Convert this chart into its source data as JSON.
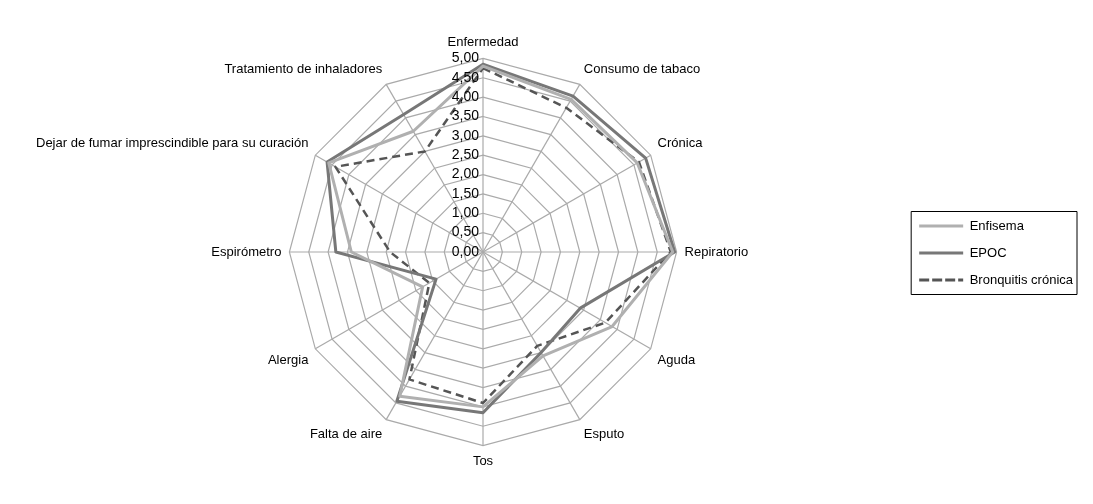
{
  "chart_data": {
    "type": "radar",
    "categories": [
      "Enfermedad",
      "Consumo de tabaco",
      "Crónica",
      "Repiratorio",
      "Aguda",
      "Esputo",
      "Tos",
      "Falta de aire",
      "Alergia",
      "Espirómetro",
      "Dejar de fumar imprescindible para su curación",
      "Tratamiento de inhaladores"
    ],
    "series": [
      {
        "name": "Enfisema",
        "color": "#b0b0b0",
        "line_style": "solid",
        "values": [
          4.8,
          4.55,
          4.6,
          4.9,
          3.85,
          3.1,
          4.0,
          4.3,
          1.8,
          3.4,
          4.6,
          3.6
        ]
      },
      {
        "name": "EPOC",
        "color": "#777777",
        "line_style": "solid",
        "values": [
          4.85,
          4.65,
          4.85,
          4.95,
          2.9,
          3.0,
          4.15,
          4.45,
          1.4,
          3.8,
          4.65,
          4.1
        ]
      },
      {
        "name": "Bronquitis crónica",
        "color": "#555555",
        "line_style": "dashed",
        "values": [
          4.75,
          4.3,
          4.65,
          4.85,
          3.65,
          2.8,
          3.9,
          3.8,
          1.6,
          2.4,
          4.4,
          3.0
        ]
      }
    ],
    "ylim": [
      0,
      5
    ],
    "yticks": [
      {
        "value": 0,
        "label": "0,00"
      },
      {
        "value": 0.5,
        "label": "0,50"
      },
      {
        "value": 1,
        "label": "1,00"
      },
      {
        "value": 1.5,
        "label": "1,50"
      },
      {
        "value": 2,
        "label": "2,00"
      },
      {
        "value": 2.5,
        "label": "2,50"
      },
      {
        "value": 3,
        "label": "3,00"
      },
      {
        "value": 3.5,
        "label": "3,50"
      },
      {
        "value": 4,
        "label": "4,00"
      },
      {
        "value": 4.5,
        "label": "4,50"
      },
      {
        "value": 5,
        "label": "5,00"
      }
    ],
    "grid": true,
    "legend": "right",
    "marker": "none"
  }
}
